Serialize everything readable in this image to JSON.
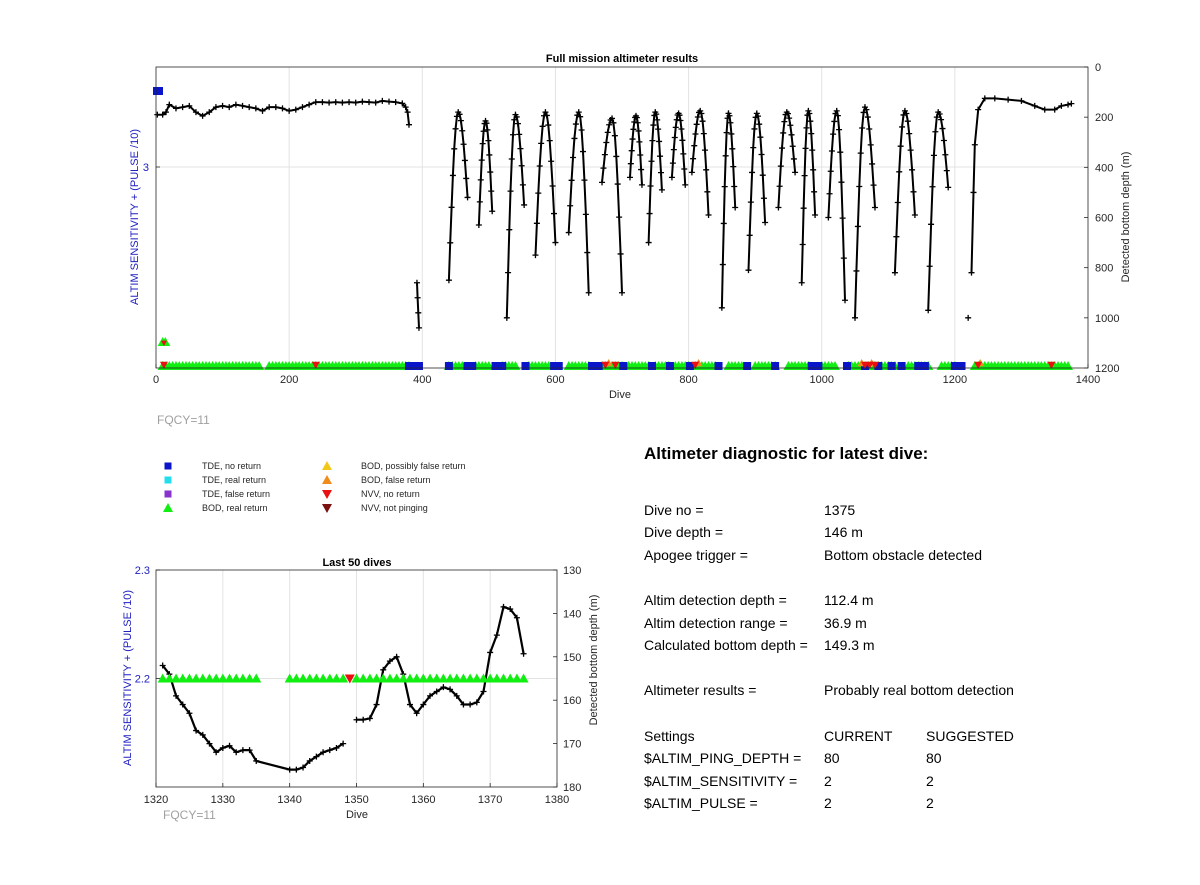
{
  "top_plot": {
    "title": "Full mission altimeter results",
    "xlabel": "Dive",
    "ylabel_left": "ALTIM SENSITIVITY + (PULSE /10)",
    "ylabel_right": "Detected bottom depth (m)",
    "fqcy_label": "FQCY=11"
  },
  "bottom_plot": {
    "title": "Last 50 dives",
    "xlabel": "Dive",
    "ylabel_left": "ALTIM SENSITIVITY + (PULSE /10)",
    "ylabel_right": "Detected bottom depth (m)",
    "fqcy_label": "FQCY=11"
  },
  "legend": {
    "items": [
      {
        "label": "TDE, no return",
        "color": "#0a14c8",
        "marker": "square"
      },
      {
        "label": "TDE, real return",
        "color": "#22ddee",
        "marker": "square"
      },
      {
        "label": "TDE, false return",
        "color": "#8833cc",
        "marker": "square"
      },
      {
        "label": "BOD, real return",
        "color": "#11ee11",
        "marker": "triangle-up"
      },
      {
        "label": "BOD, possibly false return",
        "color": "#f2c818",
        "marker": "triangle-up"
      },
      {
        "label": "BOD, false return",
        "color": "#f08c1c",
        "marker": "triangle-up"
      },
      {
        "label": "NVV, no return",
        "color": "#e81010",
        "marker": "triangle-down"
      },
      {
        "label": "NVV, not pinging",
        "color": "#7a1010",
        "marker": "triangle-down"
      }
    ]
  },
  "diagnostic": {
    "title": "Altimeter diagnostic for latest dive:",
    "dive_no_label": "Dive no =",
    "dive_no": "1375",
    "dive_depth_label": "Dive depth =",
    "dive_depth": "146 m",
    "apogee_label": "Apogee trigger =",
    "apogee": "Bottom obstacle detected",
    "det_depth_label": "Altim detection depth =",
    "det_depth": "112.4 m",
    "det_range_label": "Altim detection range =",
    "det_range": "36.9 m",
    "calc_depth_label": "Calculated bottom depth =",
    "calc_depth": "149.3 m",
    "results_label": "Altimeter results =",
    "results": "Probably real bottom detection",
    "settings_label": "Settings",
    "current_label": "CURRENT",
    "suggested_label": "SUGGESTED",
    "settings": [
      {
        "name": "$ALTIM_PING_DEPTH =",
        "current": "80",
        "suggested": "80"
      },
      {
        "name": "$ALTIM_SENSITIVITY =",
        "current": "2",
        "suggested": "2"
      },
      {
        "name": "$ALTIM_PULSE =",
        "current": "2",
        "suggested": "2"
      }
    ]
  },
  "chart_data": [
    {
      "type": "line",
      "title": "Full mission altimeter results",
      "xlabel": "Dive",
      "ylabel": "ALTIM SENSITIVITY + (PULSE /10)",
      "y2label": "Detected bottom depth (m)",
      "xlim": [
        0,
        1400
      ],
      "xticks": [
        0,
        200,
        400,
        600,
        800,
        1000,
        1200,
        1400
      ],
      "yticks_left": [
        3
      ],
      "y2lim": [
        0,
        1200
      ],
      "y2_reversed": true,
      "y2ticks": [
        0,
        200,
        400,
        600,
        800,
        1000,
        1200
      ],
      "grid": true,
      "series": [
        {
          "name": "Detected bottom depth",
          "axis": "right",
          "color": "#000000",
          "points": [
            [
              2,
              190
            ],
            [
              10,
              190
            ],
            [
              15,
              180
            ],
            [
              20,
              150
            ],
            [
              30,
              165
            ],
            [
              40,
              160
            ],
            [
              50,
              155
            ],
            [
              60,
              180
            ],
            [
              70,
              195
            ],
            [
              80,
              180
            ],
            [
              90,
              160
            ],
            [
              100,
              155
            ],
            [
              110,
              160
            ],
            [
              120,
              150
            ],
            [
              130,
              155
            ],
            [
              140,
              160
            ],
            [
              150,
              165
            ],
            [
              160,
              175
            ],
            [
              170,
              160
            ],
            [
              180,
              160
            ],
            [
              190,
              165
            ],
            [
              200,
              175
            ],
            [
              210,
              170
            ],
            [
              220,
              160
            ],
            [
              230,
              150
            ],
            [
              240,
              140
            ],
            [
              250,
              140
            ],
            [
              260,
              142
            ],
            [
              270,
              140
            ],
            [
              280,
              142
            ],
            [
              290,
              140
            ],
            [
              300,
              142
            ],
            [
              310,
              138
            ],
            [
              320,
              140
            ],
            [
              330,
              142
            ],
            [
              340,
              135
            ],
            [
              350,
              138
            ],
            [
              360,
              140
            ],
            [
              370,
              145
            ],
            [
              375,
              160
            ],
            [
              378,
              180
            ],
            [
              380,
              230
            ]
          ],
          "dive_segments": [
            {
              "start": 440,
              "end": 468,
              "min": 850,
              "top": 180,
              "bottom": 520
            },
            {
              "start": 485,
              "end": 505,
              "min": 630,
              "top": 215,
              "bottom": 575
            },
            {
              "start": 527,
              "end": 553,
              "min": 1000,
              "top": 190,
              "bottom": 550
            },
            {
              "start": 570,
              "end": 600,
              "min": 750,
              "top": 180,
              "bottom": 700
            },
            {
              "start": 620,
              "end": 650,
              "min": 660,
              "top": 180,
              "bottom": 900
            },
            {
              "start": 670,
              "end": 700,
              "min": 460,
              "top": 205,
              "bottom": 900
            },
            {
              "start": 712,
              "end": 730,
              "min": 440,
              "top": 195,
              "bottom": 470
            },
            {
              "start": 740,
              "end": 760,
              "min": 700,
              "top": 180,
              "bottom": 490
            },
            {
              "start": 775,
              "end": 795,
              "min": 440,
              "top": 185,
              "bottom": 470
            },
            {
              "start": 805,
              "end": 830,
              "min": 420,
              "top": 175,
              "bottom": 590
            },
            {
              "start": 850,
              "end": 870,
              "min": 960,
              "top": 185,
              "bottom": 560
            },
            {
              "start": 890,
              "end": 915,
              "min": 810,
              "top": 185,
              "bottom": 620
            },
            {
              "start": 935,
              "end": 960,
              "min": 560,
              "top": 180,
              "bottom": 420
            },
            {
              "start": 970,
              "end": 990,
              "min": 860,
              "top": 175,
              "bottom": 590
            },
            {
              "start": 1010,
              "end": 1035,
              "min": 600,
              "top": 175,
              "bottom": 930
            },
            {
              "start": 1050,
              "end": 1080,
              "min": 1000,
              "top": 160,
              "bottom": 560
            },
            {
              "start": 1110,
              "end": 1140,
              "min": 820,
              "top": 175,
              "bottom": 590
            },
            {
              "start": 1160,
              "end": 1190,
              "min": 970,
              "top": 180,
              "bottom": 480
            }
          ],
          "tail": [
            [
              1225,
              820
            ],
            [
              1228,
              500
            ],
            [
              1230,
              310
            ],
            [
              1235,
              170
            ],
            [
              1245,
              125
            ],
            [
              1260,
              125
            ],
            [
              1280,
              130
            ],
            [
              1300,
              135
            ],
            [
              1320,
              155
            ],
            [
              1335,
              170
            ],
            [
              1350,
              170
            ],
            [
              1360,
              155
            ],
            [
              1370,
              150
            ],
            [
              1375,
              146
            ]
          ],
          "isolated": [
            [
              1220,
              1000
            ]
          ],
          "break_drop": [
            [
              392,
              860
            ],
            [
              393,
              920
            ],
            [
              394,
              980
            ],
            [
              395,
              1040
            ]
          ]
        },
        {
          "name": "BOD, real return",
          "axis": "left",
          "color": "#11ee11",
          "marker": "triangle-up",
          "ranges": [
            [
              10,
              155
            ],
            [
              170,
              380
            ],
            [
              440,
              460
            ],
            [
              480,
              500
            ],
            [
              520,
              540
            ],
            [
              560,
              590
            ],
            [
              620,
              650
            ],
            [
              670,
              700
            ],
            [
              710,
              740
            ],
            [
              750,
              770
            ],
            [
              780,
              800
            ],
            [
              810,
              840
            ],
            [
              860,
              880
            ],
            [
              900,
              930
            ],
            [
              950,
              980
            ],
            [
              1000,
              1020
            ],
            [
              1040,
              1070
            ],
            [
              1080,
              1110
            ],
            [
              1130,
              1160
            ],
            [
              1180,
              1200
            ],
            [
              1230,
              1370
            ]
          ]
        },
        {
          "name": "TDE, no return",
          "axis": "left",
          "color": "#0a14c8",
          "marker": "square",
          "x": [
            380,
            387,
            395,
            440,
            468,
            475,
            510,
            520,
            555,
            598,
            605,
            655,
            665,
            702,
            745,
            772,
            802,
            845,
            888,
            930,
            985,
            995,
            1038,
            1065,
            1085,
            1105,
            1120,
            1145,
            1155,
            1200,
            1210
          ]
        },
        {
          "name": "NVV, no return",
          "axis": "left",
          "color": "#e81010",
          "marker": "triangle-down",
          "x": [
            12,
            240,
            675,
            690,
            810,
            1065,
            1072,
            1080,
            1235,
            1345
          ]
        },
        {
          "name": "BOD, false return",
          "axis": "left",
          "color": "#f08c1c",
          "marker": "triangle-up",
          "x": [
            680,
            815,
            1060,
            1075,
            1238
          ]
        }
      ]
    },
    {
      "type": "line",
      "title": "Last 50 dives",
      "xlabel": "Dive",
      "ylabel": "ALTIM SENSITIVITY + (PULSE /10)",
      "y2label": "Detected bottom depth (m)",
      "xlim": [
        1320,
        1380
      ],
      "xticks": [
        1320,
        1330,
        1340,
        1350,
        1360,
        1370,
        1380
      ],
      "ylim": [
        2.1,
        2.3
      ],
      "yticks_left": [
        2.2,
        2.3
      ],
      "y2lim": [
        130,
        180
      ],
      "y2_reversed": true,
      "y2ticks": [
        130,
        140,
        150,
        160,
        170,
        180
      ],
      "grid": true,
      "series": [
        {
          "name": "Detected bottom depth (segment 1)",
          "axis": "right",
          "color": "#000000",
          "points": [
            [
              1321,
              152
            ],
            [
              1322,
              154
            ],
            [
              1323,
              159
            ],
            [
              1324,
              161
            ],
            [
              1325,
              163
            ],
            [
              1326,
              167
            ],
            [
              1327,
              168
            ],
            [
              1328,
              170
            ],
            [
              1329,
              172
            ],
            [
              1330,
              171
            ],
            [
              1331,
              170.5
            ],
            [
              1332,
              172
            ],
            [
              1333,
              171.5
            ],
            [
              1334,
              171.5
            ],
            [
              1335,
              174
            ],
            [
              1340,
              176
            ],
            [
              1341,
              176
            ],
            [
              1342,
              175.5
            ],
            [
              1343,
              174
            ],
            [
              1344,
              173
            ],
            [
              1345,
              172
            ],
            [
              1346,
              171.5
            ],
            [
              1347,
              171
            ],
            [
              1348,
              170
            ]
          ]
        },
        {
          "name": "Detected bottom depth (segment 2)",
          "axis": "right",
          "color": "#000000",
          "points": [
            [
              1350,
              164.5
            ],
            [
              1351,
              164.5
            ],
            [
              1352,
              164.2
            ],
            [
              1353,
              161
            ],
            [
              1354,
              153
            ],
            [
              1355,
              151
            ],
            [
              1356,
              150
            ],
            [
              1357,
              154
            ],
            [
              1358,
              161
            ],
            [
              1359,
              163
            ],
            [
              1360,
              161
            ],
            [
              1361,
              159
            ],
            [
              1362,
              158
            ],
            [
              1363,
              157
            ],
            [
              1364,
              157.5
            ],
            [
              1365,
              159
            ],
            [
              1366,
              161
            ],
            [
              1367,
              161
            ],
            [
              1368,
              160.5
            ],
            [
              1369,
              158
            ],
            [
              1370,
              149
            ],
            [
              1371,
              145
            ],
            [
              1372,
              138.5
            ],
            [
              1373,
              139
            ],
            [
              1374,
              141
            ],
            [
              1375,
              149.3
            ]
          ]
        },
        {
          "name": "BOD, real return",
          "axis": "left",
          "color": "#11ee11",
          "marker": "triangle-up",
          "value": 2.2,
          "x": [
            1321,
            1322,
            1323,
            1324,
            1325,
            1326,
            1327,
            1328,
            1329,
            1330,
            1331,
            1332,
            1333,
            1334,
            1335,
            1340,
            1341,
            1342,
            1343,
            1344,
            1345,
            1346,
            1347,
            1348,
            1350,
            1351,
            1352,
            1353,
            1354,
            1355,
            1356,
            1357,
            1358,
            1359,
            1360,
            1361,
            1362,
            1363,
            1364,
            1365,
            1366,
            1367,
            1368,
            1369,
            1370,
            1371,
            1372,
            1373,
            1374,
            1375
          ]
        },
        {
          "name": "NVV, no return",
          "axis": "left",
          "color": "#e81010",
          "marker": "triangle-down",
          "value": 2.2,
          "x": [
            1349
          ]
        }
      ]
    }
  ]
}
